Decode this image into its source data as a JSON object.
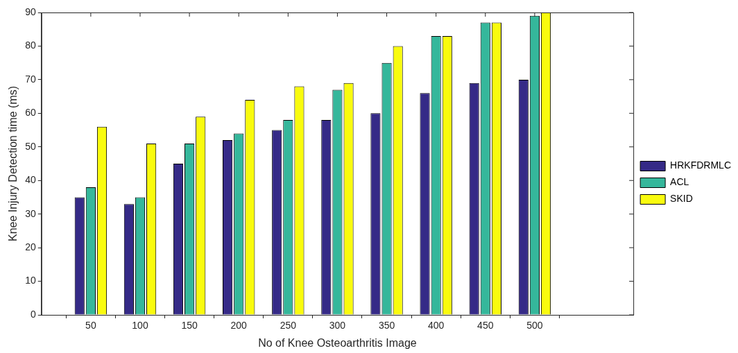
{
  "chart_data": {
    "type": "bar",
    "xlabel": "No of Knee Osteoarthritis Image",
    "ylabel": "Knee Injury Detection time (ms)",
    "x": [
      50,
      100,
      150,
      200,
      250,
      300,
      350,
      400,
      450,
      500
    ],
    "xlim": [
      0,
      600
    ],
    "xticks": [
      50,
      100,
      150,
      200,
      250,
      300,
      350,
      400,
      450,
      500
    ],
    "ylim": [
      0,
      90
    ],
    "yticks": [
      0,
      10,
      20,
      30,
      40,
      50,
      60,
      70,
      80,
      90
    ],
    "legend": "right",
    "series": [
      {
        "name": "HRKFDRMLC",
        "color": "#352a87",
        "values": [
          35,
          33,
          45,
          52,
          55,
          58,
          60,
          66,
          69,
          70
        ]
      },
      {
        "name": "ACL",
        "color": "#35b79b",
        "values": [
          38,
          35,
          51,
          54,
          58,
          67,
          75,
          83,
          87,
          89
        ]
      },
      {
        "name": "SKID",
        "color": "#f9fb0e",
        "values": [
          56,
          51,
          59,
          64,
          68,
          69,
          80,
          83,
          87,
          90
        ]
      }
    ]
  }
}
